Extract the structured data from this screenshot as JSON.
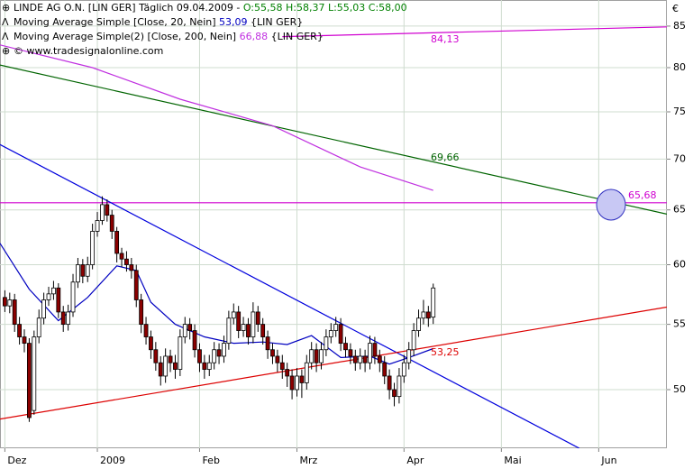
{
  "chart_data": {
    "type": "candlestick",
    "title": "LINDE AG O.N. [LIN GER]",
    "period": "Täglich 09.04.2009 -",
    "ohlc_label": "O:55,58 H:58,37 L:55,03 C:58,00",
    "ohlc_color": "#008000",
    "copyright": "© www.tradesignalonline.com",
    "currency": "€",
    "log_y": true,
    "grid": true,
    "up_color": "#ffffff",
    "down_color": "#8b0000",
    "ylim": [
      45.9,
      88.3
    ],
    "yticks": [
      50,
      55,
      60,
      65,
      70,
      75,
      80,
      85
    ],
    "xlim": [
      -1,
      136
    ],
    "xticks": [
      {
        "value": 0,
        "label": "Dez"
      },
      {
        "value": 19,
        "label": "2009"
      },
      {
        "value": 40,
        "label": "Feb"
      },
      {
        "value": 60,
        "label": "Mrz"
      },
      {
        "value": 82,
        "label": "Apr"
      },
      {
        "value": 102,
        "label": "Mai"
      },
      {
        "value": 122,
        "label": "Jun"
      }
    ],
    "open": [
      57.2,
      56.5,
      57,
      55,
      54,
      53.5,
      48.5,
      54,
      55.5,
      57,
      57.5,
      58,
      56,
      55,
      56,
      58.5,
      60,
      59,
      60,
      63,
      64,
      65.5,
      64.5,
      63,
      61,
      60.5,
      60,
      59.5,
      57,
      55,
      54,
      53,
      52,
      51,
      52.5,
      52,
      51.5,
      54,
      55,
      54.5,
      53,
      52,
      51.5,
      52,
      53,
      52.5,
      53.5,
      55.5,
      56,
      54.5,
      55,
      54,
      56,
      55,
      54,
      53,
      52.5,
      52,
      51.5,
      51,
      50,
      51,
      50.5,
      52,
      53,
      52,
      53,
      54,
      54.5,
      55,
      53.5,
      53,
      52.5,
      52,
      52.5,
      52,
      53.5,
      52.5,
      52,
      51,
      50,
      49.5,
      51,
      52,
      53,
      54.5,
      55.5,
      56,
      55.58
    ],
    "high": [
      57.8,
      57.6,
      57.5,
      55.6,
      54.6,
      53.9,
      54.5,
      56.2,
      57.6,
      58.1,
      58.6,
      58.4,
      56.5,
      56.6,
      59.2,
      60.6,
      60.5,
      60.7,
      63.7,
      64.8,
      66.3,
      66.0,
      65.0,
      63.4,
      61.5,
      61.2,
      60.6,
      60.0,
      57.5,
      55.6,
      54.5,
      53.6,
      52.5,
      53.1,
      53.0,
      52.6,
      54.6,
      55.6,
      55.5,
      55.0,
      53.5,
      52.6,
      52.6,
      53.6,
      53.5,
      54.1,
      56.1,
      56.7,
      56.5,
      55.6,
      55.5,
      56.8,
      56.5,
      55.5,
      54.5,
      53.5,
      53.0,
      52.6,
      52.0,
      51.5,
      51.6,
      51.5,
      52.6,
      53.6,
      53.5,
      53.6,
      54.6,
      55.1,
      55.6,
      55.5,
      54.0,
      53.5,
      53.0,
      53.1,
      53.0,
      54.1,
      54.0,
      53.0,
      52.5,
      51.5,
      50.5,
      51.6,
      52.6,
      53.6,
      55.1,
      56.2,
      57.0,
      56.5,
      58.37
    ],
    "low": [
      56.0,
      55.9,
      54.4,
      53.4,
      52.8,
      47.7,
      48.2,
      53.5,
      55.0,
      56.5,
      57.0,
      55.5,
      54.4,
      54.5,
      55.6,
      58.0,
      58.4,
      58.5,
      59.6,
      62.5,
      63.6,
      63.9,
      62.3,
      60.2,
      59.8,
      59.4,
      58.8,
      56.4,
      54.3,
      53.4,
      52.3,
      51.4,
      50.3,
      50.5,
      51.3,
      50.8,
      51.0,
      53.5,
      53.8,
      52.4,
      51.3,
      50.8,
      51.0,
      51.5,
      51.9,
      52.0,
      53.0,
      55.0,
      53.9,
      54.0,
      53.4,
      53.5,
      54.4,
      53.4,
      52.3,
      51.9,
      51.3,
      50.8,
      50.2,
      49.3,
      49.5,
      49.4,
      50.0,
      51.5,
      51.3,
      51.5,
      52.5,
      53.5,
      54.0,
      52.9,
      52.4,
      51.9,
      51.4,
      51.5,
      51.3,
      51.5,
      51.9,
      51.3,
      50.4,
      49.3,
      48.8,
      49.0,
      50.5,
      51.5,
      52.5,
      54.0,
      55.0,
      54.8,
      55.03
    ],
    "close": [
      56.5,
      57,
      55,
      54,
      53.5,
      48,
      54,
      55.5,
      57,
      57.5,
      58,
      56,
      55,
      56,
      58.5,
      60,
      59,
      60,
      63,
      64,
      65.5,
      64.5,
      63,
      61,
      60.5,
      60,
      59.5,
      57,
      55,
      54,
      53,
      52,
      51,
      52.5,
      52,
      51.5,
      54,
      55,
      54.5,
      53,
      52,
      51.5,
      52,
      53,
      52.5,
      53.5,
      55.5,
      56,
      54.5,
      55,
      54,
      56,
      55,
      54,
      53,
      52.5,
      52,
      51.5,
      51,
      50,
      51,
      50.5,
      52,
      53,
      52,
      53,
      54,
      54.5,
      55,
      53.5,
      53,
      52.5,
      52,
      52.5,
      52,
      53.5,
      52.5,
      52,
      51,
      50,
      49.5,
      51,
      52,
      53,
      54.5,
      55.5,
      56,
      55.5,
      58.0
    ],
    "series": [
      {
        "name": "Moving Average Simple [Close, 20, Nein]",
        "value_label": "53,09",
        "suffix": "{LIN GER}",
        "color": "#0000c0",
        "x": [
          -1,
          5,
          11,
          17,
          23,
          27,
          30,
          35,
          41,
          47,
          53,
          58,
          63,
          69,
          75,
          79,
          83,
          88
        ],
        "values": [
          61.9,
          57.9,
          55.3,
          57.2,
          59.9,
          59.5,
          56.8,
          55.0,
          54.0,
          53.5,
          53.6,
          53.4,
          54.1,
          52.4,
          52.5,
          51.9,
          52.4,
          53.09
        ]
      },
      {
        "name": "Moving Average Simple(2) [Close, 200, Nein]",
        "value_label": "66,88",
        "suffix": "{LIN GER}",
        "color": "#c030e0",
        "x": [
          -1,
          18,
          36,
          55,
          73,
          88
        ],
        "values": [
          82.7,
          80.0,
          76.4,
          73.5,
          69.2,
          66.88
        ]
      }
    ],
    "trendlines": [
      {
        "color": "#d000d0",
        "x": [
          57,
          136
        ],
        "values": [
          83.7,
          84.9
        ],
        "label": "84,13"
      },
      {
        "color": "#006400",
        "x": [
          -1,
          136
        ],
        "values": [
          80.3,
          64.6
        ],
        "label": "69,66"
      },
      {
        "color": "#d000d0",
        "x": [
          -1,
          136
        ],
        "values": [
          65.68,
          65.68
        ],
        "label": "65,68"
      },
      {
        "color": "#0000dd",
        "x": [
          -1,
          118
        ],
        "values": [
          71.5,
          45.9
        ]
      },
      {
        "color": "#dd0000",
        "x": [
          -1,
          136
        ],
        "values": [
          47.9,
          56.4
        ],
        "label": "53,25"
      }
    ]
  }
}
